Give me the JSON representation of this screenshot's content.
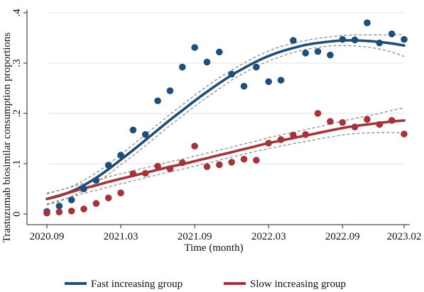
{
  "chart_data": {
    "type": "scatter",
    "xlabel": "Time (month)",
    "ylabel": "Trastuzumab biosimilar consumption proportions",
    "ylim": [
      0,
      0.4
    ],
    "y_ticks": [
      0,
      0.1,
      0.2,
      0.3,
      0.4
    ],
    "y_tick_labels": [
      "0",
      ".1",
      ".2",
      ".3",
      ".4"
    ],
    "x_ticks": [
      "2020.09",
      "2021.03",
      "2021.09",
      "2022.03",
      "2022.09",
      "2023.02"
    ],
    "x_months": [
      "2020.09",
      "2020.10",
      "2020.11",
      "2020.12",
      "2021.01",
      "2021.02",
      "2021.03",
      "2021.04",
      "2021.05",
      "2021.06",
      "2021.07",
      "2021.08",
      "2021.09",
      "2021.10",
      "2021.11",
      "2021.12",
      "2022.01",
      "2022.02",
      "2022.03",
      "2022.04",
      "2022.05",
      "2022.06",
      "2022.07",
      "2022.08",
      "2022.09",
      "2022.10",
      "2022.11",
      "2022.12",
      "2023.01",
      "2023.02"
    ],
    "grid": true,
    "legend_position": "bottom",
    "series": [
      {
        "name": "Fast increasing group",
        "color": "#1f4e79",
        "points": [
          0.005,
          0.016,
          0.028,
          0.05,
          0.067,
          0.097,
          0.117,
          0.167,
          0.158,
          0.225,
          0.245,
          0.292,
          0.331,
          0.302,
          0.322,
          0.278,
          0.254,
          0.292,
          0.263,
          0.266,
          0.345,
          0.32,
          0.323,
          0.316,
          0.347,
          0.346,
          0.38,
          0.34,
          0.358,
          0.347
        ],
        "fit": [
          0.03,
          0.036,
          0.045,
          0.057,
          0.072,
          0.089,
          0.108,
          0.127,
          0.147,
          0.167,
          0.187,
          0.206,
          0.225,
          0.243,
          0.26,
          0.276,
          0.29,
          0.303,
          0.314,
          0.323,
          0.33,
          0.336,
          0.34,
          0.343,
          0.345,
          0.345,
          0.344,
          0.342,
          0.339,
          0.335
        ],
        "ci_width": [
          0.012,
          0.011,
          0.01,
          0.01,
          0.01,
          0.01,
          0.01,
          0.011,
          0.011,
          0.011,
          0.011,
          0.011,
          0.011,
          0.011,
          0.011,
          0.01,
          0.01,
          0.01,
          0.01,
          0.01,
          0.009,
          0.009,
          0.009,
          0.009,
          0.01,
          0.011,
          0.012,
          0.014,
          0.017,
          0.022
        ]
      },
      {
        "name": "Slow increasing group",
        "color": "#a4343a",
        "points": [
          0.002,
          0.004,
          0.006,
          0.01,
          0.021,
          0.032,
          0.042,
          0.08,
          0.081,
          0.095,
          0.09,
          0.102,
          0.135,
          0.094,
          0.098,
          0.103,
          0.109,
          0.107,
          0.141,
          0.148,
          0.157,
          0.158,
          0.2,
          0.184,
          0.182,
          0.173,
          0.188,
          0.178,
          0.186,
          0.159
        ],
        "fit": [
          0.03,
          0.037,
          0.044,
          0.051,
          0.057,
          0.064,
          0.07,
          0.076,
          0.082,
          0.088,
          0.094,
          0.099,
          0.105,
          0.111,
          0.117,
          0.123,
          0.129,
          0.135,
          0.141,
          0.146,
          0.151,
          0.156,
          0.161,
          0.166,
          0.171,
          0.175,
          0.178,
          0.181,
          0.184,
          0.186
        ],
        "ci_width": [
          0.01,
          0.01,
          0.01,
          0.01,
          0.01,
          0.01,
          0.01,
          0.01,
          0.01,
          0.01,
          0.01,
          0.01,
          0.01,
          0.01,
          0.01,
          0.01,
          0.01,
          0.01,
          0.011,
          0.011,
          0.011,
          0.012,
          0.012,
          0.013,
          0.014,
          0.015,
          0.017,
          0.019,
          0.022,
          0.025
        ]
      }
    ]
  }
}
